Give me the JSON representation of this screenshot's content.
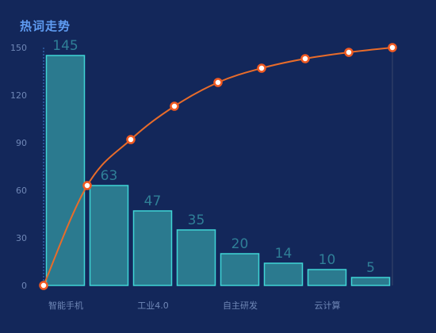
{
  "chart_data": {
    "type": "bar",
    "title": "热词走势",
    "categories": [
      "智能手机",
      "",
      "工业4.0",
      "",
      "自主研发",
      "",
      "云计算",
      ""
    ],
    "tick_labels_visible": [
      "智能手机",
      "工业4.0",
      "自主研发",
      "云计算"
    ],
    "values": [
      145,
      63,
      47,
      35,
      20,
      14,
      10,
      5
    ],
    "cumulative": [
      0,
      63,
      92,
      113,
      128,
      137,
      143,
      147,
      150
    ],
    "ylim": [
      0,
      150
    ],
    "yticks": [
      0,
      30,
      60,
      90,
      120,
      150
    ],
    "grid": false,
    "legend": "none"
  },
  "colors": {
    "background": "#13275a",
    "bar_fill": "#2b7a8f",
    "bar_stroke": "#3fd5d6",
    "line": "#e86c2a",
    "marker_fill": "#ffffff",
    "marker_stroke": "#f05a22",
    "title": "#5f9cf2",
    "tick": "#6f87b6",
    "bar_label": "#2f7f97"
  }
}
